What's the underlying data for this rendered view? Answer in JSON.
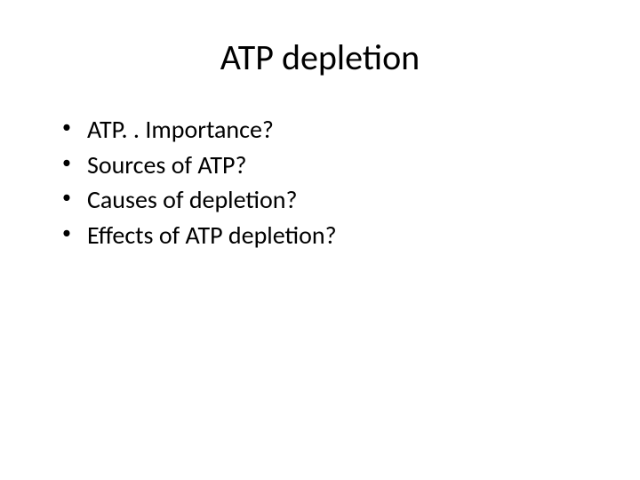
{
  "slide": {
    "title": "ATP depletion",
    "bullets": [
      "ATP. . Importance?",
      "Sources of ATP?",
      "Causes of depletion?",
      "Effects of ATP depletion?"
    ]
  },
  "style": {
    "background_color": "#ffffff",
    "text_color": "#000000",
    "title_fontsize": 40,
    "bullet_fontsize": 28,
    "font_family": "Calibri"
  }
}
